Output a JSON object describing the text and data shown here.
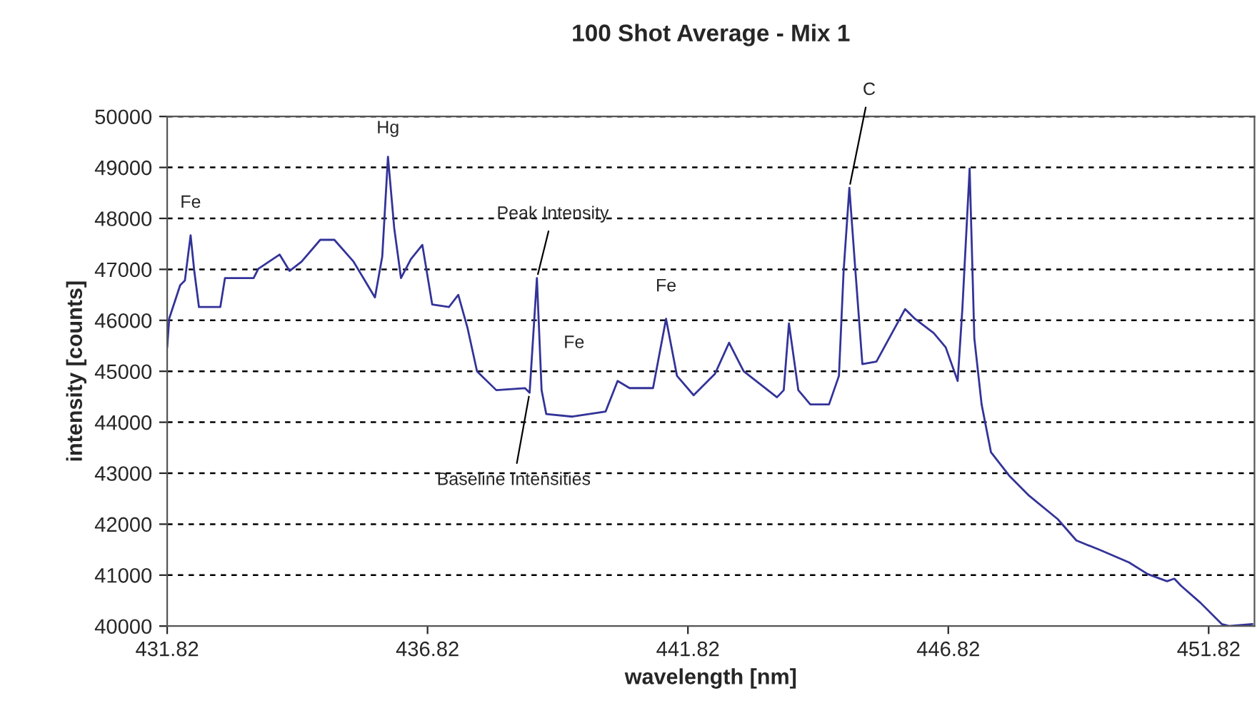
{
  "chart_data": {
    "type": "line",
    "title": "100 Shot Average - Mix 1",
    "xlabel": "wavelength [nm]",
    "ylabel": "intensity [counts]",
    "xlim": [
      431.82,
      452.7
    ],
    "xticks": [
      431.82,
      436.82,
      441.82,
      446.82,
      451.82
    ],
    "ylim": [
      40000,
      50000
    ],
    "yticks": [
      40000,
      41000,
      42000,
      43000,
      44000,
      45000,
      46000,
      47000,
      48000,
      49000,
      50000
    ],
    "grid": "y",
    "legend": false,
    "marker": "none",
    "line_style": "solid",
    "series": [
      {
        "color": "#333399",
        "x": [
          431.82,
          431.86,
          432.07,
          432.16,
          432.27,
          432.34,
          432.43,
          432.84,
          432.93,
          433.48,
          433.57,
          433.98,
          434.17,
          434.4,
          434.76,
          435.03,
          435.4,
          435.81,
          435.95,
          436.06,
          436.18,
          436.31,
          436.5,
          436.72,
          436.91,
          437.23,
          437.41,
          437.59,
          437.77,
          438.14,
          438.69,
          438.78,
          438.92,
          439.01,
          439.1,
          439.6,
          440.24,
          440.47,
          440.7,
          441.15,
          441.4,
          441.61,
          441.93,
          442.34,
          442.61,
          442.89,
          443.53,
          443.66,
          443.76,
          443.94,
          444.17,
          444.53,
          444.72,
          444.81,
          444.92,
          445.03,
          445.17,
          445.44,
          445.99,
          446.18,
          446.54,
          446.77,
          447.0,
          447.09,
          447.23,
          447.32,
          447.46,
          447.64,
          448.0,
          448.37,
          448.92,
          449.28,
          449.74,
          450.29,
          450.65,
          451.02,
          451.16,
          451.29,
          451.66,
          452.07,
          452.21,
          452.66
        ],
        "values": [
          45470,
          46040,
          46690,
          46780,
          47670,
          46970,
          46260,
          46260,
          46830,
          46830,
          47010,
          47290,
          46970,
          47150,
          47580,
          47580,
          47150,
          46450,
          47250,
          49210,
          47810,
          46830,
          47200,
          47480,
          46310,
          46260,
          46500,
          45840,
          45000,
          44630,
          44670,
          44580,
          46830,
          44630,
          44160,
          44110,
          44210,
          44810,
          44670,
          44670,
          46030,
          44910,
          44530,
          44950,
          45560,
          45000,
          44490,
          44630,
          45940,
          44630,
          44350,
          44350,
          44910,
          46970,
          48600,
          47060,
          45140,
          45190,
          46220,
          46030,
          45750,
          45470,
          44810,
          46220,
          48980,
          45650,
          44350,
          43410,
          42940,
          42560,
          42100,
          41680,
          41490,
          41250,
          41020,
          40880,
          40930,
          40790,
          40460,
          40040,
          40000,
          40040
        ]
      }
    ],
    "annotations": [
      {
        "text": "Fe",
        "x": 432.27,
        "y": 47670
      },
      {
        "text": "Hg",
        "x": 436.06,
        "y": 49210
      },
      {
        "text": "Peak Intensity",
        "x": 438.92,
        "y": 46830
      },
      {
        "text": "Fe",
        "x": 439.1,
        "y": 46100
      },
      {
        "text": "Fe",
        "x": 441.4,
        "y": 46030
      },
      {
        "text": "Baseline Intensities",
        "x": 438.78,
        "y": 44580
      },
      {
        "text": "C",
        "x": 444.92,
        "y": 48600
      }
    ]
  }
}
